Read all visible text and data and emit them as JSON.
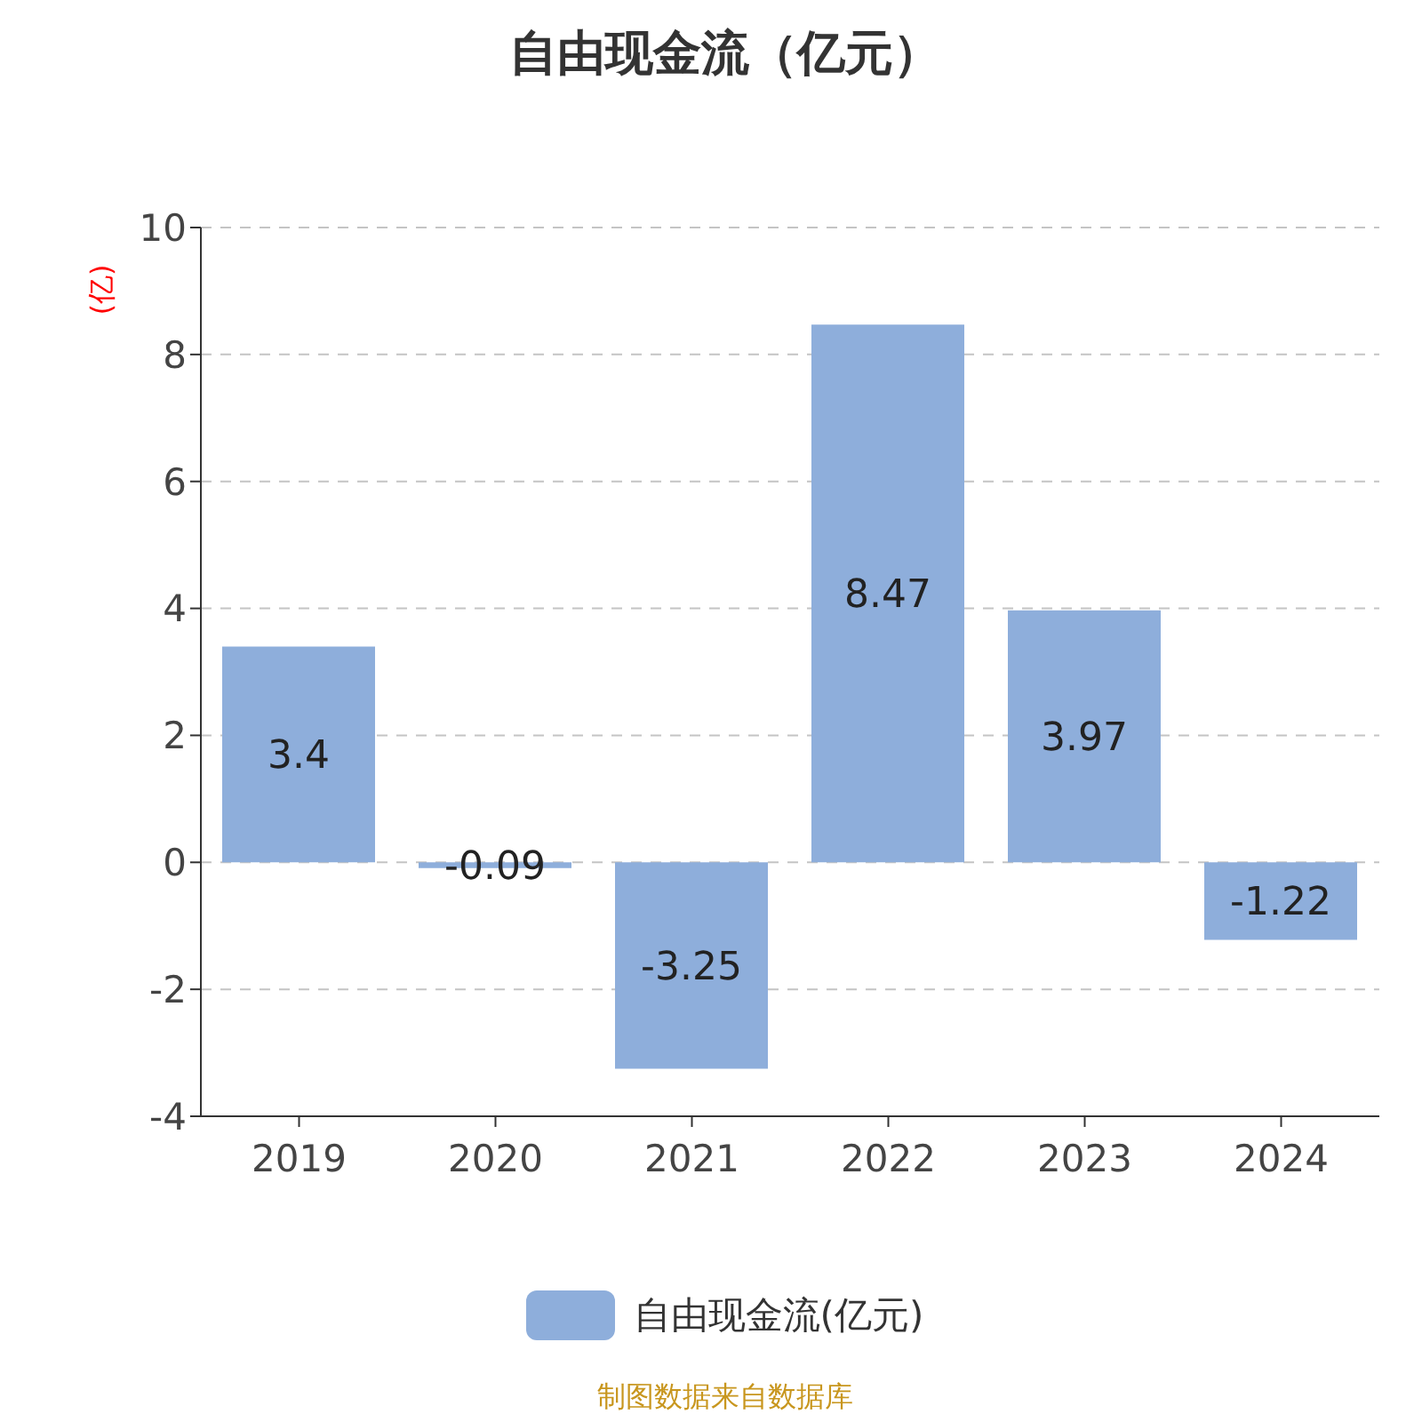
{
  "chart_data": {
    "type": "bar",
    "title": "自由现金流（亿元）",
    "ylabel": "(亿)",
    "categories": [
      "2019",
      "2020",
      "2021",
      "2022",
      "2023",
      "2024"
    ],
    "series": [
      {
        "name": "自由现金流(亿元)",
        "color": "#8eaedb",
        "values": [
          3.4,
          -0.09,
          -3.25,
          8.47,
          3.97,
          -1.22
        ]
      }
    ],
    "ylim": [
      -4,
      10
    ],
    "yticks": [
      -4,
      -2,
      0,
      2,
      4,
      6,
      8,
      10
    ],
    "grid": "y",
    "legend": "bottom",
    "data_labels": true,
    "annotations": [
      "制图数据来自数据库"
    ]
  }
}
